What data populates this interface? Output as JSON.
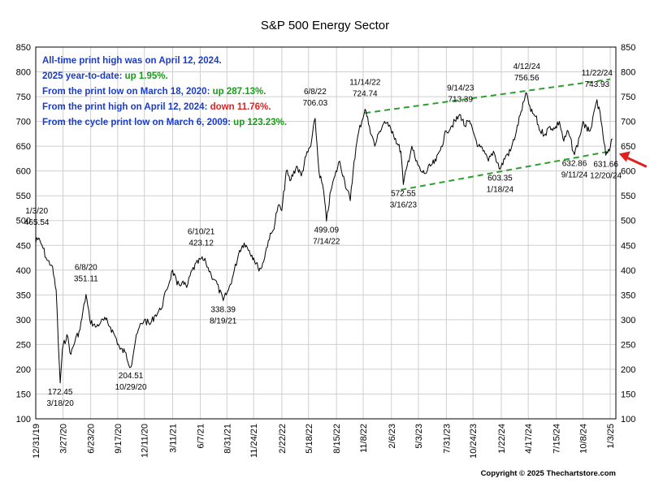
{
  "chart_data": {
    "type": "line",
    "title": "S&P 500 Energy Sector",
    "ylim": [
      100,
      850
    ],
    "yticks": [
      100,
      150,
      200,
      250,
      300,
      350,
      400,
      450,
      500,
      550,
      600,
      650,
      700,
      750,
      800,
      850
    ],
    "xlim": [
      "2019-12-31",
      "2025-01-21"
    ],
    "xticks": [
      "12/31/19",
      "3/27/20",
      "6/23/20",
      "9/17/20",
      "12/11/20",
      "3/11/21",
      "6/7/21",
      "8/31/21",
      "11/24/21",
      "2/22/22",
      "5/18/22",
      "8/15/22",
      "11/8/22",
      "2/6/23",
      "5/3/23",
      "7/31/23",
      "10/24/23",
      "1/22/24",
      "4/17/24",
      "7/15/24",
      "10/8/24",
      "1/3/25"
    ],
    "grid": true,
    "series": [
      {
        "color": "#000000",
        "points": [
          [
            "2019-12-31",
            455
          ],
          [
            "2020-01-03",
            465.54
          ],
          [
            "2020-01-20",
            450
          ],
          [
            "2020-02-05",
            420
          ],
          [
            "2020-02-20",
            410
          ],
          [
            "2020-03-05",
            360
          ],
          [
            "2020-03-12",
            250
          ],
          [
            "2020-03-18",
            172.45
          ],
          [
            "2020-03-25",
            240
          ],
          [
            "2020-04-08",
            270
          ],
          [
            "2020-04-21",
            230
          ],
          [
            "2020-05-05",
            260
          ],
          [
            "2020-05-20",
            280
          ],
          [
            "2020-06-08",
            351.11
          ],
          [
            "2020-06-20",
            300
          ],
          [
            "2020-07-08",
            285
          ],
          [
            "2020-07-25",
            295
          ],
          [
            "2020-08-10",
            300
          ],
          [
            "2020-08-25",
            285
          ],
          [
            "2020-09-10",
            265
          ],
          [
            "2020-09-25",
            240
          ],
          [
            "2020-10-10",
            235
          ],
          [
            "2020-10-29",
            204.51
          ],
          [
            "2020-11-12",
            255
          ],
          [
            "2020-11-25",
            285
          ],
          [
            "2020-12-11",
            300
          ],
          [
            "2020-12-28",
            290
          ],
          [
            "2021-01-15",
            310
          ],
          [
            "2021-02-01",
            320
          ],
          [
            "2021-02-20",
            360
          ],
          [
            "2021-03-11",
            400
          ],
          [
            "2021-03-25",
            370
          ],
          [
            "2021-04-10",
            375
          ],
          [
            "2021-04-25",
            365
          ],
          [
            "2021-05-12",
            400
          ],
          [
            "2021-06-10",
            423.12
          ],
          [
            "2021-06-25",
            415
          ],
          [
            "2021-07-12",
            390
          ],
          [
            "2021-07-25",
            380
          ],
          [
            "2021-08-19",
            338.39
          ],
          [
            "2021-09-05",
            360
          ],
          [
            "2021-09-20",
            390
          ],
          [
            "2021-10-10",
            440
          ],
          [
            "2021-10-25",
            455
          ],
          [
            "2021-11-10",
            440
          ],
          [
            "2021-11-24",
            425
          ],
          [
            "2021-12-08",
            405
          ],
          [
            "2021-12-20",
            405
          ],
          [
            "2022-01-10",
            460
          ],
          [
            "2022-01-25",
            480
          ],
          [
            "2022-02-10",
            530
          ],
          [
            "2022-02-22",
            520
          ],
          [
            "2022-03-08",
            600
          ],
          [
            "2022-03-20",
            580
          ],
          [
            "2022-04-10",
            610
          ],
          [
            "2022-04-25",
            590
          ],
          [
            "2022-05-10",
            630
          ],
          [
            "2022-05-25",
            650
          ],
          [
            "2022-06-08",
            706.03
          ],
          [
            "2022-06-20",
            600
          ],
          [
            "2022-07-05",
            560
          ],
          [
            "2022-07-14",
            499.09
          ],
          [
            "2022-07-28",
            560
          ],
          [
            "2022-08-10",
            590
          ],
          [
            "2022-08-25",
            620
          ],
          [
            "2022-09-10",
            580
          ],
          [
            "2022-09-28",
            540
          ],
          [
            "2022-10-10",
            620
          ],
          [
            "2022-10-25",
            680
          ],
          [
            "2022-11-14",
            724.74
          ],
          [
            "2022-11-28",
            690
          ],
          [
            "2022-12-15",
            650
          ],
          [
            "2022-12-30",
            680
          ],
          [
            "2023-01-15",
            700
          ],
          [
            "2023-01-28",
            690
          ],
          [
            "2023-02-10",
            680
          ],
          [
            "2023-02-25",
            655
          ],
          [
            "2023-03-08",
            640
          ],
          [
            "2023-03-16",
            572.55
          ],
          [
            "2023-03-28",
            610
          ],
          [
            "2023-04-12",
            650
          ],
          [
            "2023-04-25",
            620
          ],
          [
            "2023-05-10",
            600
          ],
          [
            "2023-05-25",
            595
          ],
          [
            "2023-06-10",
            610
          ],
          [
            "2023-06-28",
            620
          ],
          [
            "2023-07-15",
            650
          ],
          [
            "2023-07-31",
            680
          ],
          [
            "2023-08-15",
            690
          ],
          [
            "2023-09-14",
            713.39
          ],
          [
            "2023-09-28",
            690
          ],
          [
            "2023-10-10",
            700
          ],
          [
            "2023-10-24",
            680
          ],
          [
            "2023-11-10",
            650
          ],
          [
            "2023-11-25",
            640
          ],
          [
            "2023-12-12",
            620
          ],
          [
            "2023-12-28",
            640
          ],
          [
            "2024-01-18",
            603.35
          ],
          [
            "2024-02-05",
            630
          ],
          [
            "2024-02-20",
            640
          ],
          [
            "2024-03-10",
            680
          ],
          [
            "2024-03-25",
            720
          ],
          [
            "2024-04-12",
            756.56
          ],
          [
            "2024-04-25",
            720
          ],
          [
            "2024-05-10",
            710
          ],
          [
            "2024-05-25",
            680
          ],
          [
            "2024-06-10",
            675
          ],
          [
            "2024-06-25",
            690
          ],
          [
            "2024-07-10",
            685
          ],
          [
            "2024-07-25",
            700
          ],
          [
            "2024-08-08",
            660
          ],
          [
            "2024-08-22",
            680
          ],
          [
            "2024-09-11",
            632.86
          ],
          [
            "2024-09-28",
            670
          ],
          [
            "2024-10-08",
            700
          ],
          [
            "2024-10-22",
            680
          ],
          [
            "2024-11-05",
            690
          ],
          [
            "2024-11-22",
            743.93
          ],
          [
            "2024-12-05",
            700
          ],
          [
            "2024-12-20",
            631.66
          ],
          [
            "2024-12-31",
            640
          ],
          [
            "2025-01-10",
            665
          ]
        ]
      }
    ],
    "trendlines": [
      {
        "color": "#2ca02c",
        "style": "dashed",
        "start": [
          "2022-11-14",
          717
        ],
        "end": [
          "2025-01-03",
          785
        ]
      },
      {
        "color": "#2ca02c",
        "style": "dashed",
        "start": [
          "2023-03-08",
          562
        ],
        "end": [
          "2025-01-05",
          640
        ]
      }
    ],
    "annotations": [
      {
        "label": "1/3/20",
        "value": "465.54",
        "x": "2020-01-03",
        "y": 465.54,
        "pos": "above"
      },
      {
        "label": "6/8/20",
        "value": "351.11",
        "x": "2020-06-08",
        "y": 351.11,
        "pos": "above"
      },
      {
        "label": "172.45",
        "value": "3/18/20",
        "x": "2020-03-18",
        "y": 172.45,
        "pos": "below"
      },
      {
        "label": "204.51",
        "value": "10/29/20",
        "x": "2020-10-29",
        "y": 204.51,
        "pos": "below"
      },
      {
        "label": "6/10/21",
        "value": "423.12",
        "x": "2021-06-10",
        "y": 423.12,
        "pos": "above"
      },
      {
        "label": "338.39",
        "value": "8/19/21",
        "x": "2021-08-19",
        "y": 338.39,
        "pos": "below"
      },
      {
        "label": "6/8/22",
        "value": "706.03",
        "x": "2022-06-08",
        "y": 706.03,
        "pos": "above"
      },
      {
        "label": "499.09",
        "value": "7/14/22",
        "x": "2022-07-14",
        "y": 499.09,
        "pos": "below"
      },
      {
        "label": "11/14/22",
        "value": "724.74",
        "x": "2022-11-14",
        "y": 724.74,
        "pos": "above"
      },
      {
        "label": "572.55",
        "value": "3/16/23",
        "x": "2023-03-16",
        "y": 572.55,
        "pos": "below"
      },
      {
        "label": "9/14/23",
        "value": "713.39",
        "x": "2023-09-14",
        "y": 713.39,
        "pos": "above"
      },
      {
        "label": "603.35",
        "value": "1/18/24",
        "x": "2024-01-18",
        "y": 603.35,
        "pos": "below"
      },
      {
        "label": "4/12/24",
        "value": "756.56",
        "x": "2024-04-12",
        "y": 756.56,
        "pos": "above"
      },
      {
        "label": "11/22/24",
        "value": "743.93",
        "x": "2024-11-22",
        "y": 743.93,
        "pos": "above"
      },
      {
        "label": "632.86",
        "value": "9/11/24",
        "x": "2024-09-11",
        "y": 632.86,
        "pos": "below"
      },
      {
        "label": "631.66",
        "value": "12/20/24",
        "x": "2024-12-20",
        "y": 631.66,
        "pos": "below"
      }
    ],
    "arrow": {
      "color": "#e02020",
      "x": "2025-01-10",
      "y": 625
    }
  },
  "info_lines": [
    [
      {
        "text": "All-time print high was on April 12, 2024.",
        "color": "#1a3cc8"
      }
    ],
    [
      {
        "text": "2025 year-to-date:  ",
        "color": "#1a3cc8"
      },
      {
        "text": "up 1.95%.",
        "color": "#1a9a1a"
      }
    ],
    [
      {
        "text": "From the print low on March 18, 2020:  ",
        "color": "#1a3cc8"
      },
      {
        "text": "up 287.13%.",
        "color": "#1a9a1a"
      }
    ],
    [
      {
        "text": "From the print high on April 12, 2024:  ",
        "color": "#1a3cc8"
      },
      {
        "text": "down 11.76%.",
        "color": "#e02020"
      }
    ],
    [
      {
        "text": "From the cycle print low on March 6, 2009:  ",
        "color": "#1a3cc8"
      },
      {
        "text": "up 123.23%.",
        "color": "#1a9a1a"
      }
    ]
  ],
  "copyright": "Copyright © 2025 Thechartstore.com"
}
